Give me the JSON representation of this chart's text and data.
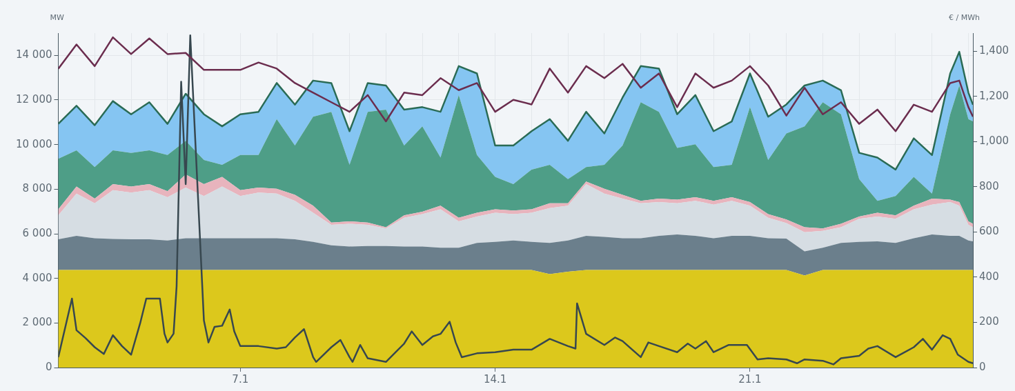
{
  "chart_data": {
    "type": "area",
    "stacked": true,
    "grid": true,
    "marker": "none",
    "ylabel": "MW",
    "y2label": "€ / MWh",
    "x": [
      "--01-02T00:00",
      "--01-02T12:00",
      "--01-03T00:00",
      "--01-03T12:00",
      "--01-04T00:00",
      "--01-04T12:00",
      "--01-05T00:00",
      "--01-05T12:00",
      "--01-06T00:00",
      "--01-06T12:00",
      "--01-07T00:00",
      "--01-07T12:00",
      "--01-08T00:00",
      "--01-08T12:00",
      "--01-09T00:00",
      "--01-09T12:00",
      "--01-10T00:00",
      "--01-10T12:00",
      "--01-11T00:00",
      "--01-11T12:00",
      "--01-12T00:00",
      "--01-12T12:00",
      "--01-13T00:00",
      "--01-13T12:00",
      "--01-14T00:00",
      "--01-14T12:00",
      "--01-15T00:00",
      "--01-15T12:00",
      "--01-16T00:00",
      "--01-16T12:00",
      "--01-17T00:00",
      "--01-17T12:00",
      "--01-18T00:00",
      "--01-18T12:00",
      "--01-19T00:00",
      "--01-19T12:00",
      "--01-20T00:00",
      "--01-20T12:00",
      "--01-21T00:00",
      "--01-21T12:00",
      "--01-22T00:00",
      "--01-22T12:00",
      "--01-23T00:00",
      "--01-23T12:00",
      "--01-24T00:00",
      "--01-24T12:00",
      "--01-25T00:00",
      "--01-25T12:00",
      "--01-26T00:00",
      "--01-26T12:00",
      "--01-26T18:00",
      "--01-27T00:00",
      "--01-27T03:00"
    ],
    "xlim": [
      "--01-02T00:00",
      "--01-27T03:00"
    ],
    "xticks": [
      {
        "value": "--01-03",
        "label": null
      },
      {
        "value": "--01-04",
        "label": null
      },
      {
        "value": "--01-05",
        "label": null
      },
      {
        "value": "--01-06",
        "label": null
      },
      {
        "value": "--01-07",
        "label": "7.1"
      },
      {
        "value": "--01-08",
        "label": null
      },
      {
        "value": "--01-09",
        "label": null
      },
      {
        "value": "--01-10",
        "label": null
      },
      {
        "value": "--01-11",
        "label": null
      },
      {
        "value": "--01-12",
        "label": null
      },
      {
        "value": "--01-13",
        "label": null
      },
      {
        "value": "--01-14",
        "label": "14.1"
      },
      {
        "value": "--01-15",
        "label": null
      },
      {
        "value": "--01-16",
        "label": null
      },
      {
        "value": "--01-17",
        "label": null
      },
      {
        "value": "--01-18",
        "label": null
      },
      {
        "value": "--01-19",
        "label": null
      },
      {
        "value": "--01-20",
        "label": null
      },
      {
        "value": "--01-21",
        "label": "21.1"
      },
      {
        "value": "--01-22",
        "label": null
      },
      {
        "value": "--01-23",
        "label": null
      },
      {
        "value": "--01-24",
        "label": null
      },
      {
        "value": "--01-25",
        "label": null
      },
      {
        "value": "--01-26",
        "label": null
      },
      {
        "value": "--01-27",
        "label": null
      }
    ],
    "ylim": [
      0,
      15000
    ],
    "yticks": [
      0,
      {
        "value": 2000,
        "label": "2 000"
      },
      {
        "value": 4000,
        "label": "4 000"
      },
      {
        "value": 6000,
        "label": "6 000"
      },
      {
        "value": 8000,
        "label": "8 000"
      },
      {
        "value": 10000,
        "label": "10 000"
      },
      {
        "value": 12000,
        "label": "12 000"
      },
      {
        "value": 14000,
        "label": "14 000"
      }
    ],
    "y2lim": [
      0,
      1480
    ],
    "y2ticks": [
      0,
      200,
      400,
      600,
      800,
      {
        "value": 1000,
        "label": "1,000"
      },
      {
        "value": 1200,
        "label": "1,200"
      },
      {
        "value": 1400,
        "label": "1,400"
      }
    ],
    "series": [
      {
        "color": "#dcc81c",
        "values": [
          4380,
          4380,
          4380,
          4380,
          4380,
          4380,
          4380,
          4380,
          4380,
          4380,
          4380,
          4380,
          4380,
          4380,
          4380,
          4380,
          4380,
          4380,
          4380,
          4380,
          4380,
          4380,
          4380,
          4380,
          4380,
          4380,
          4380,
          4190,
          4300,
          4380,
          4380,
          4380,
          4380,
          4380,
          4380,
          4380,
          4380,
          4380,
          4380,
          4380,
          4380,
          4130,
          4380,
          4380,
          4380,
          4380,
          4380,
          4380,
          4380,
          4380,
          4380,
          4380,
          4380
        ]
      },
      {
        "color": "#6b7f8c",
        "values": [
          1370,
          1530,
          1420,
          1390,
          1370,
          1370,
          1320,
          1420,
          1420,
          1420,
          1420,
          1420,
          1420,
          1370,
          1260,
          1100,
          1050,
          1070,
          1070,
          1050,
          1050,
          990,
          990,
          1210,
          1260,
          1320,
          1260,
          1400,
          1400,
          1530,
          1480,
          1420,
          1420,
          1530,
          1590,
          1530,
          1420,
          1530,
          1530,
          1420,
          1400,
          1080,
          990,
          1210,
          1260,
          1280,
          1210,
          1420,
          1590,
          1530,
          1530,
          1320,
          1280
        ]
      },
      {
        "color": "#d6dde3",
        "values": [
          1080,
          1890,
          1570,
          2190,
          2100,
          2210,
          1940,
          2270,
          1890,
          2320,
          1890,
          2050,
          2000,
          1730,
          1300,
          920,
          1020,
          950,
          790,
          1290,
          1450,
          1730,
          1190,
          1180,
          1300,
          1180,
          1300,
          1560,
          1560,
          2320,
          1940,
          1780,
          1570,
          1510,
          1400,
          1570,
          1510,
          1570,
          1350,
          920,
          700,
          860,
          760,
          700,
          1030,
          1110,
          1080,
          1300,
          1340,
          1510,
          1350,
          700,
          630
        ]
      },
      {
        "color": "#e8b4bd",
        "values": [
          270,
          320,
          210,
          270,
          270,
          270,
          270,
          590,
          540,
          430,
          270,
          220,
          220,
          270,
          320,
          100,
          110,
          100,
          50,
          110,
          110,
          160,
          160,
          170,
          160,
          160,
          160,
          220,
          110,
          110,
          220,
          170,
          110,
          160,
          160,
          160,
          170,
          160,
          160,
          160,
          160,
          220,
          110,
          160,
          100,
          170,
          160,
          160,
          270,
          110,
          160,
          160,
          160
        ]
      },
      {
        "color": "#4e9e87",
        "values": [
          2260,
          1620,
          1410,
          1510,
          1510,
          1510,
          1620,
          1510,
          1080,
          540,
          1570,
          1460,
          3120,
          2210,
          3990,
          4970,
          2530,
          4970,
          5280,
          3130,
          3830,
          2160,
          5500,
          2590,
          1450,
          1190,
          1780,
          1720,
          1080,
          650,
          1070,
          2210,
          4420,
          3890,
          2320,
          2370,
          1510,
          1450,
          4260,
          2430,
          3860,
          4530,
          5660,
          4910,
          1680,
          540,
          860,
          1290,
          220,
          3830,
          5230,
          4580,
          4590
        ]
      },
      {
        "color": "#85c5f2",
        "values": [
          1570,
          2000,
          1880,
          2210,
          1730,
          2160,
          1400,
          2110,
          2050,
          1730,
          1830,
          1940,
          1620,
          1830,
          1620,
          1290,
          1510,
          1290,
          1080,
          1610,
          860,
          2050,
          1300,
          3660,
          1410,
          1730,
          1720,
          2050,
          1720,
          2480,
          1410,
          2150,
          1620,
          1940,
          1510,
          2210,
          1610,
          1950,
          1510,
          1940,
          1300,
          1830,
          970,
          1080,
          1180,
          1940,
          1190,
          1730,
          1730,
          1830,
          1510,
          1190,
          750
        ]
      },
      {
        "type": "line",
        "color": "#6b2d4e",
        "values": [
          13400,
          14490,
          13520,
          14810,
          14060,
          14760,
          14060,
          14110,
          13350,
          13350,
          13350,
          13680,
          13410,
          12760,
          12330,
          11900,
          11470,
          12220,
          11040,
          12330,
          12220,
          12980,
          12440,
          12760,
          11470,
          12010,
          11800,
          13410,
          12330,
          13520,
          12980,
          13620,
          12550,
          13190,
          11680,
          13190,
          12550,
          12870,
          13520,
          12650,
          11300,
          12550,
          11360,
          11900,
          10930,
          11570,
          10600,
          11790,
          11470,
          12760,
          12870,
          11680,
          11250
        ]
      },
      {
        "type": "line",
        "color": "#37474f",
        "axis": "y2",
        "x": [
          "--01-02T00:00",
          "--01-02T05:00",
          "--01-02T09:00",
          "--01-02T12:00",
          "--01-02T18:00",
          "--01-03T00:00",
          "--01-03T06:00",
          "--01-03T12:00",
          "--01-03T18:00",
          "--01-04T00:00",
          "--01-04T06:00",
          "--01-04T10:00",
          "--01-04T19:00",
          "--01-04T22:00",
          "--01-05T00:00",
          "--01-05T04:00",
          "--01-05T06:00",
          "--01-05T09:00",
          "--01-05T12:00",
          "--01-05T15:00",
          "--01-06T00:00",
          "--01-06T03:00",
          "--01-06T07:00",
          "--01-06T12:00",
          "--01-06T17:00",
          "--01-06T20:00",
          "--01-07T00:00",
          "--01-07T12:00",
          "--01-08T00:00",
          "--01-08T06:00",
          "--01-08T12:00",
          "--01-08T18:00",
          "--01-09T00:00",
          "--01-09T02:00",
          "--01-09T12:00",
          "--01-09T18:00",
          "--01-10T00:00",
          "--01-10T02:00",
          "--01-10T07:00",
          "--01-10T12:00",
          "--01-11T00:00",
          "--01-11T12:00",
          "--01-11T17:00",
          "--01-12T00:00",
          "--01-12T07:00",
          "--01-12T12:00",
          "--01-12T18:00",
          "--01-12T22:00",
          "--01-13T02:00",
          "--01-13T12:00",
          "--01-14T00:00",
          "--01-14T12:00",
          "--01-15T00:00",
          "--01-15T12:00",
          "--01-16T00:00",
          "--01-16T05:00",
          "--01-16T06:00",
          "--01-16T12:00",
          "--01-17T00:00",
          "--01-17T07:00",
          "--01-17T12:00",
          "--01-18T00:00",
          "--01-18T05:00",
          "--01-18T12:00",
          "--01-19T00:00",
          "--01-19T07:00",
          "--01-19T12:00",
          "--01-19T19:00",
          "--01-20T00:00",
          "--01-20T10:00",
          "--01-20T22:00",
          "--01-21T05:00",
          "--01-21T12:00",
          "--01-22T00:00",
          "--01-22T07:00",
          "--01-22T12:00",
          "--01-23T00:00",
          "--01-23T07:00",
          "--01-23T12:00",
          "--01-24T00:00",
          "--01-24T06:00",
          "--01-24T12:00",
          "--01-25T00:00",
          "--01-25T12:00",
          "--01-25T18:00",
          "--01-26T00:00",
          "--01-26T07:00",
          "--01-26T12:00",
          "--01-26T17:00",
          "--01-27T00:00",
          "--01-27T03:00"
        ],
        "values": [
          46,
          190,
          305,
          165,
          130,
          90,
          60,
          143,
          95,
          57,
          197,
          305,
          305,
          150,
          111,
          150,
          360,
          1265,
          812,
          1470,
          208,
          111,
          180,
          185,
          257,
          160,
          95,
          95,
          84,
          90,
          133,
          170,
          46,
          25,
          90,
          122,
          46,
          25,
          100,
          41,
          25,
          106,
          160,
          100,
          138,
          149,
          203,
          111,
          46,
          63,
          68,
          79,
          79,
          127,
          95,
          84,
          284,
          149,
          100,
          133,
          117,
          46,
          111,
          95,
          68,
          106,
          84,
          117,
          68,
          100,
          100,
          36,
          41,
          36,
          19,
          36,
          30,
          14,
          41,
          52,
          84,
          95,
          46,
          90,
          127,
          79,
          143,
          127,
          57,
          25,
          19
        ]
      }
    ]
  }
}
